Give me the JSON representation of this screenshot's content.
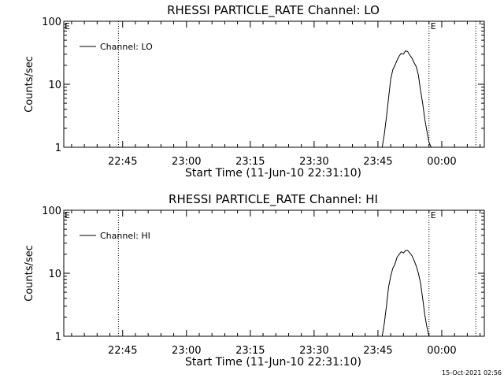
{
  "chart_data": [
    {
      "type": "line",
      "title": "RHESSI PARTICLE_RATE Channel: LO",
      "ylabel": "Counts/sec",
      "xlabel": "Start Time (11-Jun-10 22:31:10)",
      "yscale": "log",
      "ylim": [
        1,
        100
      ],
      "y_ticks": [
        {
          "value": 1,
          "label": "1"
        },
        {
          "value": 10,
          "label": "10"
        },
        {
          "value": 100,
          "label": "100"
        }
      ],
      "xlim": [
        "22:31:10",
        "00:10:00"
      ],
      "x_ticks": [
        {
          "value": "22:45",
          "label": "22:45"
        },
        {
          "value": "23:00",
          "label": "23:00"
        },
        {
          "value": "23:15",
          "label": "23:15"
        },
        {
          "value": "23:30",
          "label": "23:30"
        },
        {
          "value": "23:45",
          "label": "23:45"
        },
        {
          "value": "00:00",
          "label": "00:00"
        }
      ],
      "vlines": [
        {
          "time": "22:44",
          "label": ""
        },
        {
          "time": "23:57",
          "label": "E"
        },
        {
          "time": "00:08",
          "label": ""
        }
      ],
      "corner_mark": "E",
      "legend": {
        "placement": "top-left"
      },
      "series": [
        {
          "name": "Channel: LO",
          "x": [
            "23:46",
            "23:46:30",
            "23:47",
            "23:47:30",
            "23:48",
            "23:48:30",
            "23:49",
            "23:49:30",
            "23:50",
            "23:50:30",
            "23:51",
            "23:51:30",
            "23:52",
            "23:52:30",
            "23:53",
            "23:53:30",
            "23:54",
            "23:54:30",
            "23:55",
            "23:55:30",
            "23:56",
            "23:56:30",
            "23:57",
            "23:57:30"
          ],
          "y": [
            1,
            1.6,
            3,
            6,
            12,
            17,
            20,
            24,
            28,
            31,
            30,
            34,
            33,
            29,
            26,
            22,
            19,
            14,
            8,
            5,
            2.8,
            1.8,
            1.2,
            1
          ]
        }
      ]
    },
    {
      "type": "line",
      "title": "RHESSI PARTICLE_RATE Channel: HI",
      "ylabel": "Counts/sec",
      "xlabel": "Start Time (11-Jun-10 22:31:10)",
      "yscale": "log",
      "ylim": [
        1,
        100
      ],
      "y_ticks": [
        {
          "value": 1,
          "label": "1"
        },
        {
          "value": 10,
          "label": "10"
        },
        {
          "value": 100,
          "label": "100"
        }
      ],
      "xlim": [
        "22:31:10",
        "00:10:00"
      ],
      "x_ticks": [
        {
          "value": "22:45",
          "label": "22:45"
        },
        {
          "value": "23:00",
          "label": "23:00"
        },
        {
          "value": "23:15",
          "label": "23:15"
        },
        {
          "value": "23:30",
          "label": "23:30"
        },
        {
          "value": "23:45",
          "label": "23:45"
        },
        {
          "value": "00:00",
          "label": "00:00"
        }
      ],
      "vlines": [
        {
          "time": "22:44",
          "label": ""
        },
        {
          "time": "23:57",
          "label": "E"
        },
        {
          "time": "00:08",
          "label": ""
        }
      ],
      "corner_mark": "E",
      "legend": {
        "placement": "top-left"
      },
      "series": [
        {
          "name": "Channel: HI",
          "x": [
            "23:46",
            "23:46:30",
            "23:47",
            "23:47:30",
            "23:48",
            "23:48:30",
            "23:49",
            "23:49:30",
            "23:50",
            "23:50:30",
            "23:51",
            "23:51:30",
            "23:52",
            "23:52:30",
            "23:53",
            "23:53:30",
            "23:54",
            "23:54:30",
            "23:55",
            "23:55:30",
            "23:56",
            "23:56:30",
            "23:57"
          ],
          "y": [
            1,
            1.6,
            3,
            6,
            9,
            12,
            14,
            18,
            20,
            22,
            21,
            23,
            23,
            21,
            19,
            16,
            13,
            10,
            7,
            4,
            2.2,
            1.4,
            1
          ]
        }
      ]
    }
  ],
  "footer_timestamp": "15-Oct-2021 02:56"
}
